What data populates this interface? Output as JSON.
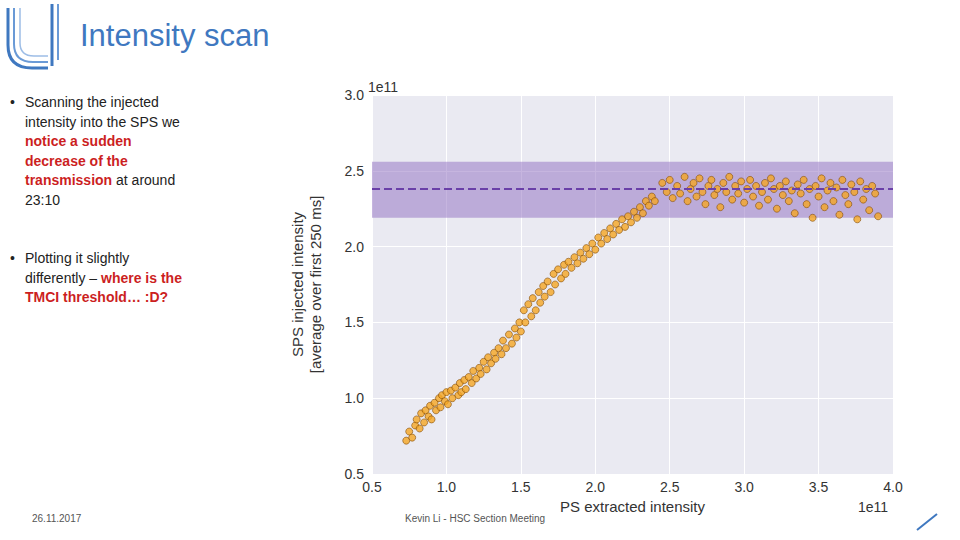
{
  "slide": {
    "title": "Intensity scan",
    "bullets": [
      [
        {
          "text": "Scanning the injected intensity into the SPS we ",
          "highlight": false
        },
        {
          "text": "notice a sudden decrease of the transmission",
          "highlight": true
        },
        {
          "text": " at around 23:10",
          "highlight": false
        }
      ],
      [
        {
          "text": "Plotting it slightly differently – ",
          "highlight": false
        },
        {
          "text": "where is the TMCI threshold… :D?",
          "highlight": true
        }
      ]
    ],
    "date": "26.11.2017",
    "footer": "Kevin Li - HSC Section Meeting"
  },
  "chart_data": {
    "type": "scatter",
    "x_label": "PS extracted intensity",
    "y_label": "SPS injected intensity\n[average over first 250 ms]",
    "annotations": [
      {
        "text": "1e11",
        "position": "x"
      },
      {
        "text": "1e11",
        "position": "y"
      }
    ],
    "xlim": [
      0.5,
      4.0
    ],
    "xticks": [
      0.5,
      {
        "value": 1,
        "label": "1.0"
      },
      1.5,
      {
        "value": 2,
        "label": "2.0"
      },
      2.5,
      {
        "value": 3,
        "label": "3.0"
      },
      3.5,
      {
        "value": 4,
        "label": "4.0"
      }
    ],
    "ylim": [
      0.5,
      3.0
    ],
    "yticks": [
      0.5,
      {
        "value": 1,
        "label": "1.0"
      },
      1.5,
      {
        "value": 2,
        "label": "2.0"
      },
      2.5,
      {
        "value": 3,
        "label": "3.0"
      }
    ],
    "grid": true,
    "color": "#f5a623",
    "marker": "circle",
    "reference_band": {
      "ymin": 2.19,
      "ymax": 2.56,
      "color": "#8e6bbf"
    },
    "reference_line": {
      "y": 2.38,
      "color": "#6a3fa8",
      "line_style": "dashed"
    },
    "x": [
      0.73,
      0.75,
      0.77,
      0.79,
      0.8,
      0.82,
      0.83,
      0.85,
      0.86,
      0.88,
      0.89,
      0.9,
      0.92,
      0.93,
      0.95,
      0.96,
      0.97,
      0.99,
      1.0,
      1.01,
      1.03,
      1.04,
      1.06,
      1.08,
      1.09,
      1.1,
      1.12,
      1.13,
      1.15,
      1.17,
      1.18,
      1.2,
      1.22,
      1.23,
      1.25,
      1.27,
      1.28,
      1.3,
      1.32,
      1.33,
      1.35,
      1.37,
      1.38,
      1.4,
      1.42,
      1.44,
      1.46,
      1.47,
      1.49,
      1.5,
      1.52,
      1.53,
      1.55,
      1.57,
      1.58,
      1.6,
      1.62,
      1.63,
      1.65,
      1.66,
      1.68,
      1.7,
      1.72,
      1.73,
      1.75,
      1.77,
      1.79,
      1.8,
      1.82,
      1.84,
      1.86,
      1.88,
      1.9,
      1.92,
      1.94,
      1.96,
      1.98,
      2.0,
      2.02,
      2.04,
      2.06,
      2.08,
      2.1,
      2.12,
      2.14,
      2.16,
      2.18,
      2.2,
      2.22,
      2.24,
      2.26,
      2.28,
      2.3,
      2.32,
      2.34,
      2.36,
      2.38,
      2.4,
      2.45,
      2.48,
      2.5,
      2.52,
      2.55,
      2.57,
      2.6,
      2.62,
      2.64,
      2.66,
      2.68,
      2.7,
      2.72,
      2.74,
      2.76,
      2.78,
      2.8,
      2.82,
      2.84,
      2.86,
      2.88,
      2.9,
      2.92,
      2.94,
      2.96,
      2.98,
      3.0,
      3.02,
      3.04,
      3.06,
      3.08,
      3.1,
      3.12,
      3.14,
      3.16,
      3.18,
      3.2,
      3.22,
      3.24,
      3.26,
      3.28,
      3.3,
      3.32,
      3.34,
      3.36,
      3.38,
      3.4,
      3.42,
      3.44,
      3.46,
      3.48,
      3.5,
      3.52,
      3.54,
      3.56,
      3.58,
      3.6,
      3.62,
      3.64,
      3.66,
      3.68,
      3.7,
      3.72,
      3.74,
      3.76,
      3.78,
      3.8,
      3.82,
      3.84,
      3.86,
      3.88,
      3.9
    ],
    "values": [
      0.72,
      0.78,
      0.74,
      0.82,
      0.86,
      0.8,
      0.9,
      0.84,
      0.92,
      0.88,
      0.95,
      0.86,
      0.97,
      0.92,
      1.0,
      0.94,
      1.02,
      0.98,
      1.04,
      0.96,
      1.05,
      1.0,
      1.07,
      1.02,
      1.1,
      1.04,
      1.12,
      1.06,
      1.14,
      1.1,
      1.18,
      1.13,
      1.2,
      1.16,
      1.24,
      1.19,
      1.27,
      1.23,
      1.3,
      1.26,
      1.33,
      1.29,
      1.38,
      1.33,
      1.42,
      1.36,
      1.46,
      1.4,
      1.5,
      1.44,
      1.58,
      1.5,
      1.62,
      1.54,
      1.66,
      1.58,
      1.7,
      1.63,
      1.74,
      1.67,
      1.77,
      1.7,
      1.82,
      1.75,
      1.85,
      1.79,
      1.88,
      1.82,
      1.9,
      1.86,
      1.93,
      1.89,
      1.96,
      1.92,
      1.99,
      1.95,
      2.02,
      1.98,
      2.06,
      2.02,
      2.09,
      2.05,
      2.12,
      2.08,
      2.15,
      2.11,
      2.18,
      2.13,
      2.2,
      2.16,
      2.23,
      2.19,
      2.26,
      2.22,
      2.3,
      2.27,
      2.33,
      2.3,
      2.42,
      2.36,
      2.44,
      2.32,
      2.4,
      2.35,
      2.46,
      2.3,
      2.38,
      2.42,
      2.33,
      2.45,
      2.36,
      2.28,
      2.4,
      2.44,
      2.34,
      2.38,
      2.26,
      2.42,
      2.36,
      2.46,
      2.31,
      2.4,
      2.35,
      2.43,
      2.29,
      2.38,
      2.44,
      2.33,
      2.4,
      2.27,
      2.36,
      2.42,
      2.31,
      2.45,
      2.38,
      2.25,
      2.4,
      2.34,
      2.43,
      2.3,
      2.37,
      2.22,
      2.41,
      2.35,
      2.44,
      2.28,
      2.38,
      2.19,
      2.4,
      2.33,
      2.45,
      2.26,
      2.37,
      2.42,
      2.3,
      2.39,
      2.21,
      2.44,
      2.34,
      2.28,
      2.41,
      2.36,
      2.18,
      2.43,
      2.31,
      2.38,
      2.24,
      2.4,
      2.35,
      2.2
    ]
  }
}
